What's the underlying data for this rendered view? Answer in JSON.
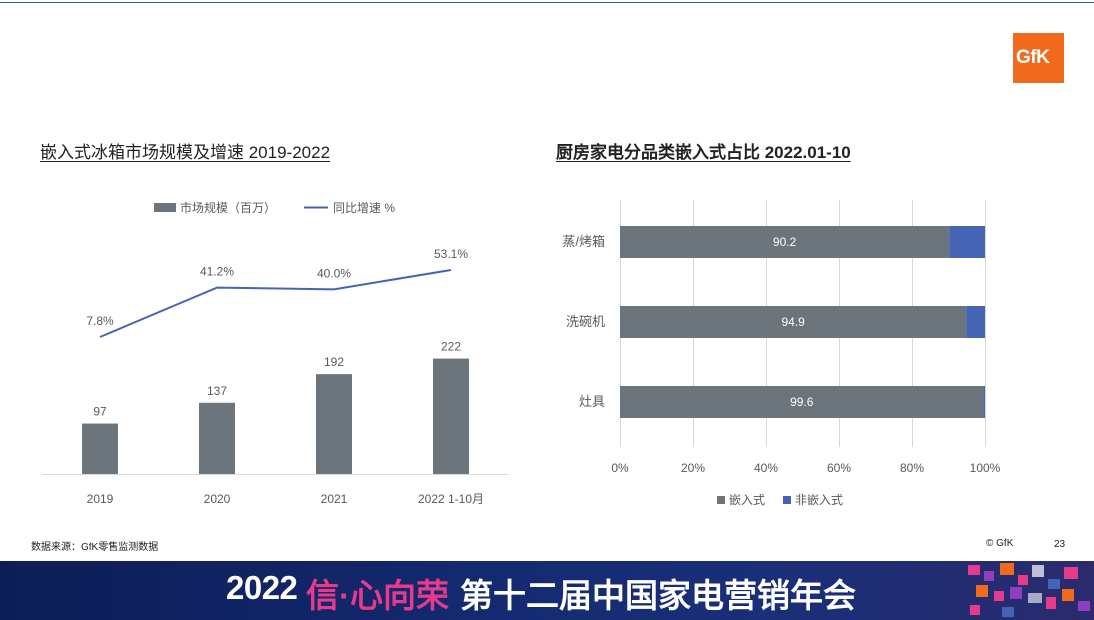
{
  "header": {
    "logo_text": "GfK"
  },
  "left_chart_title": "嵌入式冰箱市场规模及增速 2019-2022",
  "right_chart_title": "厨房家电分品类嵌入式占比 2022.01-10",
  "chart_data": [
    {
      "type": "bar",
      "categories": [
        "2019",
        "2020",
        "2021",
        "2022 1-10月"
      ],
      "series": [
        {
          "name": "市场规模（百万）",
          "type": "bar",
          "values": [
            97,
            137,
            192,
            222
          ],
          "color": "#6b757b"
        },
        {
          "name": "同比增速 %",
          "type": "line",
          "values": [
            7.8,
            41.2,
            40.0,
            53.1
          ],
          "labels": [
            "7.8%",
            "41.2%",
            "40.0%",
            "53.1%"
          ],
          "color": "#4565b4"
        }
      ],
      "legend": "top",
      "grid": false
    },
    {
      "type": "bar",
      "orientation": "horizontal",
      "stacked": true,
      "categories": [
        "蒸/烤箱",
        "洗碗机",
        "灶具"
      ],
      "series": [
        {
          "name": "嵌入式",
          "values": [
            90.2,
            94.9,
            99.6
          ],
          "color": "#6b757b"
        },
        {
          "name": "非嵌入式",
          "values": [
            9.8,
            5.1,
            0.4
          ],
          "color": "#4565b4"
        }
      ],
      "xticks": [
        "0%",
        "20%",
        "40%",
        "60%",
        "80%",
        "100%"
      ],
      "xlim": [
        0,
        100
      ],
      "legend": "bottom",
      "grid": true
    }
  ],
  "footer": {
    "source": "数据来源：GfK零售监测数据",
    "copyright": "© GfK",
    "page_number": "23"
  },
  "banner": {
    "year": "2022",
    "slogan": "信·心向荣",
    "title": "第十二届中国家电营销年会"
  }
}
